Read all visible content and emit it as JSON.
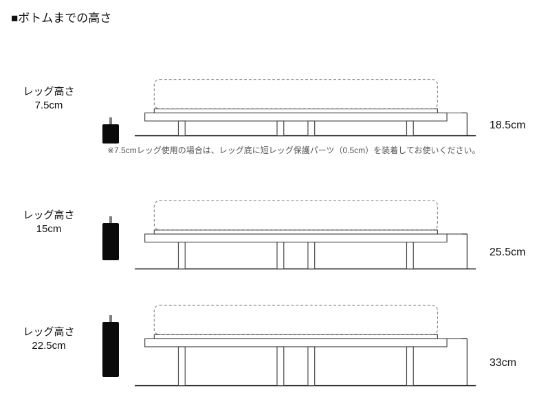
{
  "title": "■ボトムまでの高さ",
  "note": "※7.5cmレッグ使用の場合は、レッグ底に短レッグ保護パーツ（0.5cm）を装着してお使いください。",
  "colors": {
    "stroke": "#444444",
    "dash": "#888888",
    "floor": "#222222",
    "leg": "#0a0a0a",
    "bolt": "#808080"
  },
  "rows": [
    {
      "legLabel1": "レッグ高さ",
      "legLabel2": "7.5cm",
      "legHeightPx": 28,
      "legWidthPx": 24,
      "frameLegHeightPx": 22,
      "dimLabel": "18.5cm",
      "hasNote": true
    },
    {
      "legLabel1": "レッグ高さ",
      "legLabel2": "15cm",
      "legHeightPx": 54,
      "legWidthPx": 24,
      "frameLegHeightPx": 40,
      "dimLabel": "25.5cm",
      "hasNote": false
    },
    {
      "legLabel1": "レッグ高さ",
      "legLabel2": "22.5cm",
      "legHeightPx": 80,
      "legWidthPx": 24,
      "frameLegHeightPx": 58,
      "dimLabel": "33cm",
      "hasNote": false
    }
  ],
  "diagram": {
    "svgWidth": 510,
    "floorY": 120,
    "frameLeft": 15,
    "frameRight": 465,
    "frameThickness": 12,
    "subFrameInset": 14,
    "subFrameThickness": 6,
    "mattressHeight": 44,
    "legInset": 50,
    "legWidth": 10,
    "dimLineX": 495,
    "dimTickLen": 8,
    "floorEndX": 508
  }
}
